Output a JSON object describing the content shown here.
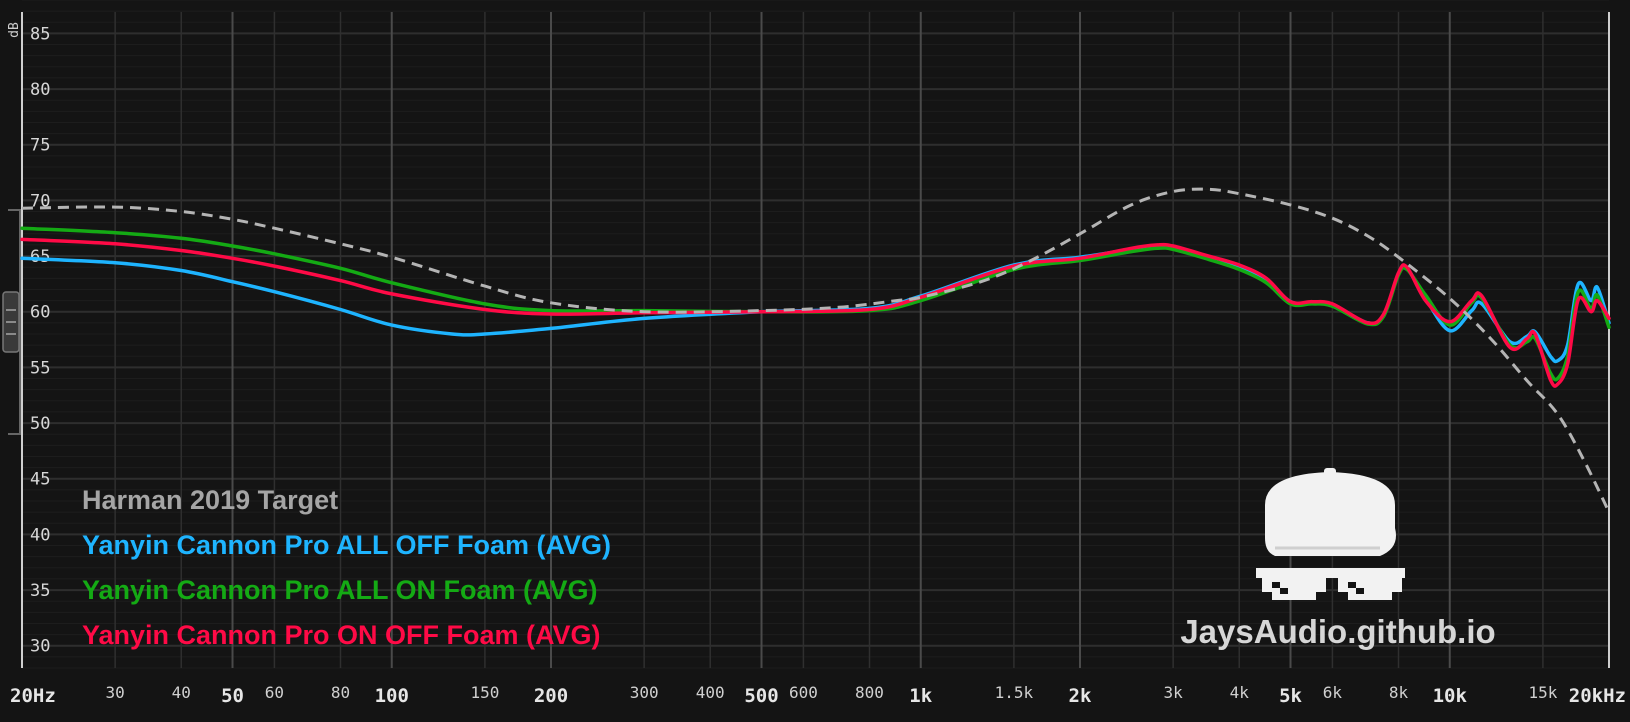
{
  "chart_data": {
    "type": "line",
    "ylabel": "dB",
    "ylim": [
      28,
      88
    ],
    "xlim": [
      20,
      20000
    ],
    "x_scale": "log",
    "y_ticks": [
      30,
      35,
      40,
      45,
      50,
      55,
      60,
      65,
      70,
      75,
      80,
      85
    ],
    "x_ticks": [
      {
        "value": 20,
        "label": "20Hz",
        "major": true
      },
      {
        "value": 30,
        "label": "30"
      },
      {
        "value": 40,
        "label": "40"
      },
      {
        "value": 50,
        "label": "50",
        "major": true
      },
      {
        "value": 60,
        "label": "60"
      },
      {
        "value": 80,
        "label": "80"
      },
      {
        "value": 100,
        "label": "100",
        "major": true
      },
      {
        "value": 150,
        "label": "150"
      },
      {
        "value": 200,
        "label": "200",
        "major": true
      },
      {
        "value": 300,
        "label": "300"
      },
      {
        "value": 400,
        "label": "400"
      },
      {
        "value": 500,
        "label": "500",
        "major": true
      },
      {
        "value": 600,
        "label": "600"
      },
      {
        "value": 800,
        "label": "800"
      },
      {
        "value": 1000,
        "label": "1k",
        "major": true
      },
      {
        "value": 1500,
        "label": "1.5k"
      },
      {
        "value": 2000,
        "label": "2k",
        "major": true
      },
      {
        "value": 3000,
        "label": "3k"
      },
      {
        "value": 4000,
        "label": "4k"
      },
      {
        "value": 5000,
        "label": "5k",
        "major": true
      },
      {
        "value": 6000,
        "label": "6k"
      },
      {
        "value": 8000,
        "label": "8k"
      },
      {
        "value": 10000,
        "label": "10k",
        "major": true
      },
      {
        "value": 15000,
        "label": "15k"
      },
      {
        "value": 20000,
        "label": "20kHz",
        "major": true
      }
    ],
    "grid": true,
    "legend_position": "bottom-left",
    "series": [
      {
        "name": "Harman 2019 Target",
        "color": "#b4b4b4",
        "dashed": true,
        "points": [
          [
            20,
            69.3
          ],
          [
            30,
            69.4
          ],
          [
            40,
            69.0
          ],
          [
            50,
            68.3
          ],
          [
            60,
            67.5
          ],
          [
            80,
            66.1
          ],
          [
            100,
            64.9
          ],
          [
            150,
            62.3
          ],
          [
            200,
            60.8
          ],
          [
            300,
            60.0
          ],
          [
            500,
            60.1
          ],
          [
            700,
            60.4
          ],
          [
            900,
            61.0
          ],
          [
            1000,
            61.3
          ],
          [
            1300,
            62.7
          ],
          [
            1600,
            64.5
          ],
          [
            2000,
            67.0
          ],
          [
            2500,
            69.6
          ],
          [
            3000,
            70.8
          ],
          [
            3500,
            71.0
          ],
          [
            4000,
            70.6
          ],
          [
            5000,
            69.6
          ],
          [
            6000,
            68.4
          ],
          [
            7000,
            66.8
          ],
          [
            8000,
            64.9
          ],
          [
            10000,
            61.2
          ],
          [
            12000,
            57.5
          ],
          [
            14000,
            53.8
          ],
          [
            16000,
            50.8
          ],
          [
            18000,
            46.5
          ],
          [
            20000,
            42.0
          ]
        ]
      },
      {
        "name": "Yanyin Cannon Pro ALL OFF Foam (AVG)",
        "color": "#1eb4ff",
        "points": [
          [
            20,
            64.8
          ],
          [
            30,
            64.4
          ],
          [
            40,
            63.7
          ],
          [
            50,
            62.7
          ],
          [
            60,
            61.8
          ],
          [
            80,
            60.2
          ],
          [
            100,
            58.8
          ],
          [
            130,
            58.0
          ],
          [
            150,
            58.0
          ],
          [
            200,
            58.5
          ],
          [
            300,
            59.4
          ],
          [
            500,
            60.0
          ],
          [
            800,
            60.3
          ],
          [
            1000,
            61.4
          ],
          [
            1500,
            64.2
          ],
          [
            2000,
            64.9
          ],
          [
            2500,
            65.6
          ],
          [
            2800,
            65.8
          ],
          [
            3000,
            65.7
          ],
          [
            3500,
            64.9
          ],
          [
            4000,
            64.0
          ],
          [
            4500,
            62.8
          ],
          [
            5000,
            60.9
          ],
          [
            5500,
            60.8
          ],
          [
            6000,
            60.6
          ],
          [
            7000,
            59.0
          ],
          [
            7500,
            59.7
          ],
          [
            8000,
            63.4
          ],
          [
            8300,
            63.9
          ],
          [
            9000,
            61.2
          ],
          [
            10000,
            58.3
          ],
          [
            11000,
            60.1
          ],
          [
            11500,
            60.7
          ],
          [
            13000,
            57.3
          ],
          [
            14000,
            57.8
          ],
          [
            14500,
            58.2
          ],
          [
            15500,
            56.0
          ],
          [
            16000,
            55.6
          ],
          [
            16700,
            57.0
          ],
          [
            17500,
            62.5
          ],
          [
            18500,
            61.0
          ],
          [
            19000,
            62.2
          ],
          [
            20000,
            59.0
          ]
        ]
      },
      {
        "name": "Yanyin Cannon Pro ALL ON Foam (AVG)",
        "color": "#14aa14",
        "points": [
          [
            20,
            67.5
          ],
          [
            30,
            67.1
          ],
          [
            40,
            66.6
          ],
          [
            50,
            65.9
          ],
          [
            60,
            65.2
          ],
          [
            80,
            63.9
          ],
          [
            100,
            62.6
          ],
          [
            150,
            60.7
          ],
          [
            200,
            60.1
          ],
          [
            300,
            60.1
          ],
          [
            500,
            60.0
          ],
          [
            800,
            60.1
          ],
          [
            1000,
            61.0
          ],
          [
            1500,
            63.8
          ],
          [
            2000,
            64.6
          ],
          [
            2500,
            65.4
          ],
          [
            2800,
            65.7
          ],
          [
            3000,
            65.6
          ],
          [
            3500,
            64.7
          ],
          [
            4000,
            63.8
          ],
          [
            4500,
            62.6
          ],
          [
            5000,
            60.7
          ],
          [
            5500,
            60.7
          ],
          [
            6000,
            60.5
          ],
          [
            7000,
            58.9
          ],
          [
            7500,
            59.6
          ],
          [
            8000,
            63.3
          ],
          [
            8300,
            63.8
          ],
          [
            9000,
            61.5
          ],
          [
            10000,
            58.8
          ],
          [
            11000,
            60.8
          ],
          [
            11500,
            61.2
          ],
          [
            13000,
            57.0
          ],
          [
            14000,
            57.3
          ],
          [
            14500,
            57.6
          ],
          [
            15500,
            54.5
          ],
          [
            16000,
            54.0
          ],
          [
            16700,
            56.0
          ],
          [
            17500,
            61.8
          ],
          [
            18500,
            60.3
          ],
          [
            19000,
            61.5
          ],
          [
            20000,
            58.6
          ]
        ]
      },
      {
        "name": "Yanyin Cannon Pro ON OFF Foam (AVG)",
        "color": "#ff0a46",
        "points": [
          [
            20,
            66.5
          ],
          [
            30,
            66.1
          ],
          [
            40,
            65.5
          ],
          [
            50,
            64.8
          ],
          [
            60,
            64.1
          ],
          [
            80,
            62.8
          ],
          [
            100,
            61.6
          ],
          [
            150,
            60.2
          ],
          [
            200,
            59.8
          ],
          [
            300,
            59.9
          ],
          [
            500,
            60.0
          ],
          [
            800,
            60.2
          ],
          [
            1000,
            61.3
          ],
          [
            1500,
            64.1
          ],
          [
            2000,
            64.8
          ],
          [
            2500,
            65.7
          ],
          [
            2800,
            66.0
          ],
          [
            3000,
            65.9
          ],
          [
            3500,
            65.0
          ],
          [
            4000,
            64.2
          ],
          [
            4500,
            63.0
          ],
          [
            5000,
            60.9
          ],
          [
            5500,
            60.9
          ],
          [
            6000,
            60.7
          ],
          [
            7000,
            59.0
          ],
          [
            7500,
            59.8
          ],
          [
            8000,
            63.5
          ],
          [
            8300,
            64.0
          ],
          [
            9000,
            61.0
          ],
          [
            10000,
            59.1
          ],
          [
            11000,
            61.0
          ],
          [
            11500,
            61.4
          ],
          [
            13000,
            56.8
          ],
          [
            14000,
            57.6
          ],
          [
            14500,
            58.0
          ],
          [
            15500,
            53.9
          ],
          [
            16000,
            53.5
          ],
          [
            16700,
            55.3
          ],
          [
            17500,
            61.1
          ],
          [
            18500,
            60.0
          ],
          [
            19000,
            61.0
          ],
          [
            20000,
            59.4
          ]
        ]
      }
    ]
  },
  "brand": {
    "text": "JaysAudio.github.io",
    "icon": "cap-and-pixel-sunglasses-logo"
  }
}
